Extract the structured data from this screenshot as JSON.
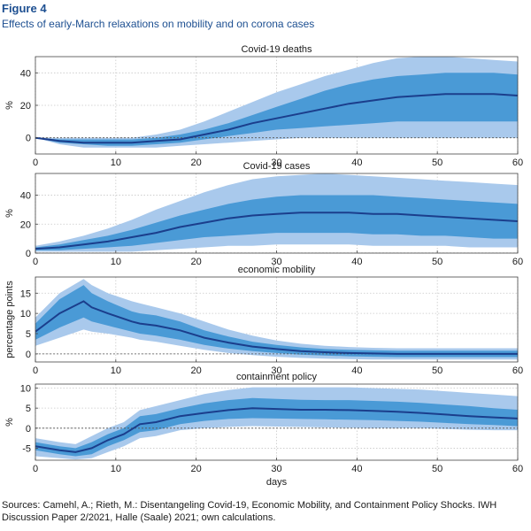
{
  "figure": {
    "label": "Figure 4",
    "title": "Effects of early-March relaxations on mobility and on corona cases",
    "source": "Sources: Camehl, A.; Rieth, M.: Disentangeling Covid-19, Economic Mobility, and Containment Policy Shocks. IWH Discussion Paper 2/2021, Halle (Saale) 2021; own calculations."
  },
  "colors": {
    "outer_band": "#a9c9ec",
    "inner_band": "#4a9ad6",
    "median_line": "#1b3e8c",
    "zero_line": "#555555"
  },
  "chart_data": [
    {
      "type": "line",
      "title": "Covid-19 deaths",
      "ylabel": "%",
      "xlabel": "",
      "xlim": [
        0,
        60
      ],
      "ylim": [
        -10,
        50
      ],
      "yticks": [
        0,
        20,
        40
      ],
      "xticks": [
        0,
        10,
        20,
        30,
        40,
        50,
        60
      ],
      "grid": true,
      "x": [
        0,
        3,
        6,
        9,
        12,
        15,
        18,
        21,
        24,
        27,
        30,
        33,
        36,
        39,
        42,
        45,
        48,
        51,
        54,
        57,
        60
      ],
      "series": [
        {
          "role": "median",
          "values": [
            0,
            -2,
            -3,
            -3,
            -3,
            -2,
            -1,
            2,
            5,
            9,
            12,
            15,
            18,
            21,
            23,
            25,
            26,
            27,
            27,
            27,
            26
          ]
        },
        {
          "role": "band_68_low",
          "values": [
            0,
            -3,
            -4,
            -5,
            -5,
            -4,
            -3,
            -1,
            1,
            3,
            5,
            6,
            7,
            8,
            9,
            10,
            10,
            10,
            10,
            10,
            10
          ]
        },
        {
          "role": "band_68_high",
          "values": [
            0,
            -1,
            -1,
            -1,
            -1,
            0,
            2,
            5,
            9,
            14,
            19,
            24,
            29,
            33,
            36,
            38,
            39,
            40,
            40,
            40,
            39
          ]
        },
        {
          "role": "band_90_low",
          "values": [
            0,
            -4,
            -6,
            -6,
            -6,
            -6,
            -5,
            -4,
            -3,
            -2,
            -1,
            0,
            0,
            0,
            0,
            0,
            0,
            0,
            0,
            0,
            0
          ]
        },
        {
          "role": "band_90_high",
          "values": [
            0,
            0,
            0,
            0,
            0,
            2,
            5,
            10,
            16,
            22,
            28,
            33,
            38,
            42,
            46,
            49,
            50,
            50,
            49,
            48,
            47
          ]
        }
      ]
    },
    {
      "type": "line",
      "title": "Covid-19 cases",
      "ylabel": "%",
      "xlabel": "",
      "xlim": [
        0,
        60
      ],
      "ylim": [
        0,
        55
      ],
      "yticks": [
        0,
        20,
        40
      ],
      "xticks": [
        0,
        10,
        20,
        30,
        40,
        50,
        60
      ],
      "grid": true,
      "x": [
        0,
        3,
        6,
        9,
        12,
        15,
        18,
        21,
        24,
        27,
        30,
        33,
        36,
        39,
        42,
        45,
        48,
        51,
        54,
        57,
        60
      ],
      "series": [
        {
          "role": "median",
          "values": [
            3,
            4,
            6,
            8,
            11,
            14,
            18,
            21,
            24,
            26,
            27,
            28,
            28,
            28,
            27,
            27,
            26,
            25,
            24,
            23,
            22
          ]
        },
        {
          "role": "band_68_low",
          "values": [
            2,
            2,
            3,
            4,
            5,
            7,
            9,
            11,
            12,
            13,
            14,
            14,
            14,
            14,
            13,
            13,
            12,
            12,
            11,
            10,
            10
          ]
        },
        {
          "role": "band_68_high",
          "values": [
            4,
            6,
            9,
            12,
            16,
            21,
            26,
            30,
            34,
            37,
            39,
            40,
            40,
            40,
            40,
            39,
            38,
            37,
            36,
            35,
            34
          ]
        },
        {
          "role": "band_90_low",
          "values": [
            1,
            1,
            1,
            1,
            1,
            2,
            3,
            4,
            5,
            5,
            6,
            6,
            6,
            6,
            5,
            5,
            5,
            5,
            4,
            4,
            4
          ]
        },
        {
          "role": "band_90_high",
          "values": [
            5,
            8,
            12,
            17,
            23,
            30,
            36,
            42,
            47,
            51,
            53,
            54,
            55,
            54,
            53,
            52,
            51,
            50,
            49,
            48,
            47
          ]
        }
      ]
    },
    {
      "type": "line",
      "title": "economic mobility",
      "ylabel": "percentage points",
      "xlabel": "",
      "xlim": [
        0,
        60
      ],
      "ylim": [
        -2,
        19
      ],
      "yticks": [
        0,
        5,
        10,
        15
      ],
      "xticks": [
        0,
        10,
        20,
        30,
        40,
        50,
        60
      ],
      "grid": true,
      "x": [
        0,
        3,
        6,
        7,
        9,
        12,
        13,
        15,
        18,
        21,
        24,
        27,
        30,
        33,
        36,
        39,
        42,
        45,
        48,
        51,
        54,
        57,
        60
      ],
      "series": [
        {
          "role": "median",
          "values": [
            5.5,
            10,
            13,
            11.5,
            10,
            8,
            7.5,
            7,
            5.8,
            4,
            2.8,
            1.8,
            1.2,
            0.7,
            0.4,
            0.2,
            0.1,
            0,
            0,
            0,
            0,
            0,
            0
          ]
        },
        {
          "role": "band_68_low",
          "values": [
            3.5,
            6.5,
            9,
            8,
            7,
            5.5,
            5,
            4.5,
            3.5,
            2.2,
            1.3,
            0.7,
            0.2,
            -0.2,
            -0.4,
            -0.6,
            -0.7,
            -0.8,
            -0.8,
            -0.8,
            -0.8,
            -0.8,
            -0.8
          ]
        },
        {
          "role": "band_68_high",
          "values": [
            7.5,
            13.5,
            17,
            15,
            13,
            10.5,
            10,
            9.5,
            8,
            5.8,
            4.3,
            3,
            2.2,
            1.6,
            1.2,
            1,
            0.9,
            0.8,
            0.8,
            0.8,
            0.8,
            0.8,
            0.8
          ]
        },
        {
          "role": "band_90_low",
          "values": [
            2,
            4,
            6,
            5.5,
            5,
            4,
            3.5,
            3,
            2,
            1,
            0.2,
            -0.3,
            -0.7,
            -1,
            -1.2,
            -1.3,
            -1.4,
            -1.4,
            -1.4,
            -1.4,
            -1.4,
            -1.4,
            -1.4
          ]
        },
        {
          "role": "band_90_high",
          "values": [
            9,
            15,
            18.5,
            17,
            15,
            13,
            12.5,
            11.5,
            10,
            8,
            6,
            4.5,
            3.3,
            2.5,
            2,
            1.7,
            1.5,
            1.4,
            1.4,
            1.4,
            1.4,
            1.4,
            1.4
          ]
        }
      ]
    },
    {
      "type": "line",
      "title": "containment policy",
      "ylabel": "%",
      "xlabel": "days",
      "xlim": [
        0,
        60
      ],
      "ylim": [
        -8,
        11
      ],
      "yticks": [
        -5,
        0,
        5,
        10
      ],
      "xticks": [
        0,
        10,
        20,
        30,
        40,
        50,
        60
      ],
      "grid": true,
      "x": [
        0,
        3,
        5,
        7,
        9,
        11,
        13,
        15,
        18,
        21,
        24,
        27,
        30,
        33,
        36,
        39,
        42,
        45,
        48,
        51,
        54,
        57,
        60
      ],
      "series": [
        {
          "role": "median",
          "values": [
            -4.5,
            -5.5,
            -6,
            -5,
            -3,
            -1.5,
            1,
            1.5,
            3,
            3.8,
            4.5,
            5,
            4.8,
            4.6,
            4.6,
            4.5,
            4.3,
            4.1,
            3.8,
            3.4,
            3.0,
            2.7,
            2.4
          ]
        },
        {
          "role": "band_68_low",
          "values": [
            -5.5,
            -6.5,
            -7,
            -6.5,
            -4.5,
            -3,
            -1,
            -0.5,
            1,
            1.8,
            2.3,
            2.5,
            2.4,
            2.3,
            2.2,
            2.1,
            2.0,
            1.8,
            1.6,
            1.3,
            1.0,
            0.8,
            0.5
          ]
        },
        {
          "role": "band_68_high",
          "values": [
            -3.5,
            -4.5,
            -5,
            -3.5,
            -1.5,
            0,
            3,
            3.5,
            5,
            6.2,
            7,
            7.5,
            7.3,
            7.1,
            7.0,
            7.0,
            6.8,
            6.6,
            6.3,
            5.9,
            5.5,
            5.0,
            4.6
          ]
        },
        {
          "role": "band_90_low",
          "values": [
            -7,
            -7.5,
            -7.8,
            -7.5,
            -6,
            -4.5,
            -2.5,
            -2,
            -0.5,
            0,
            0.3,
            0.5,
            0.4,
            0.3,
            0.2,
            0.1,
            0,
            0,
            0,
            -0.2,
            -0.4,
            -0.5,
            -0.5
          ]
        },
        {
          "role": "band_90_high",
          "values": [
            -2.5,
            -3.5,
            -4,
            -2,
            0,
            1.5,
            4.5,
            5.5,
            7,
            8.5,
            9.5,
            10.2,
            10.2,
            10.2,
            10.2,
            10.2,
            10,
            9.8,
            9.6,
            9.2,
            8.8,
            8.4,
            8
          ]
        }
      ]
    }
  ]
}
